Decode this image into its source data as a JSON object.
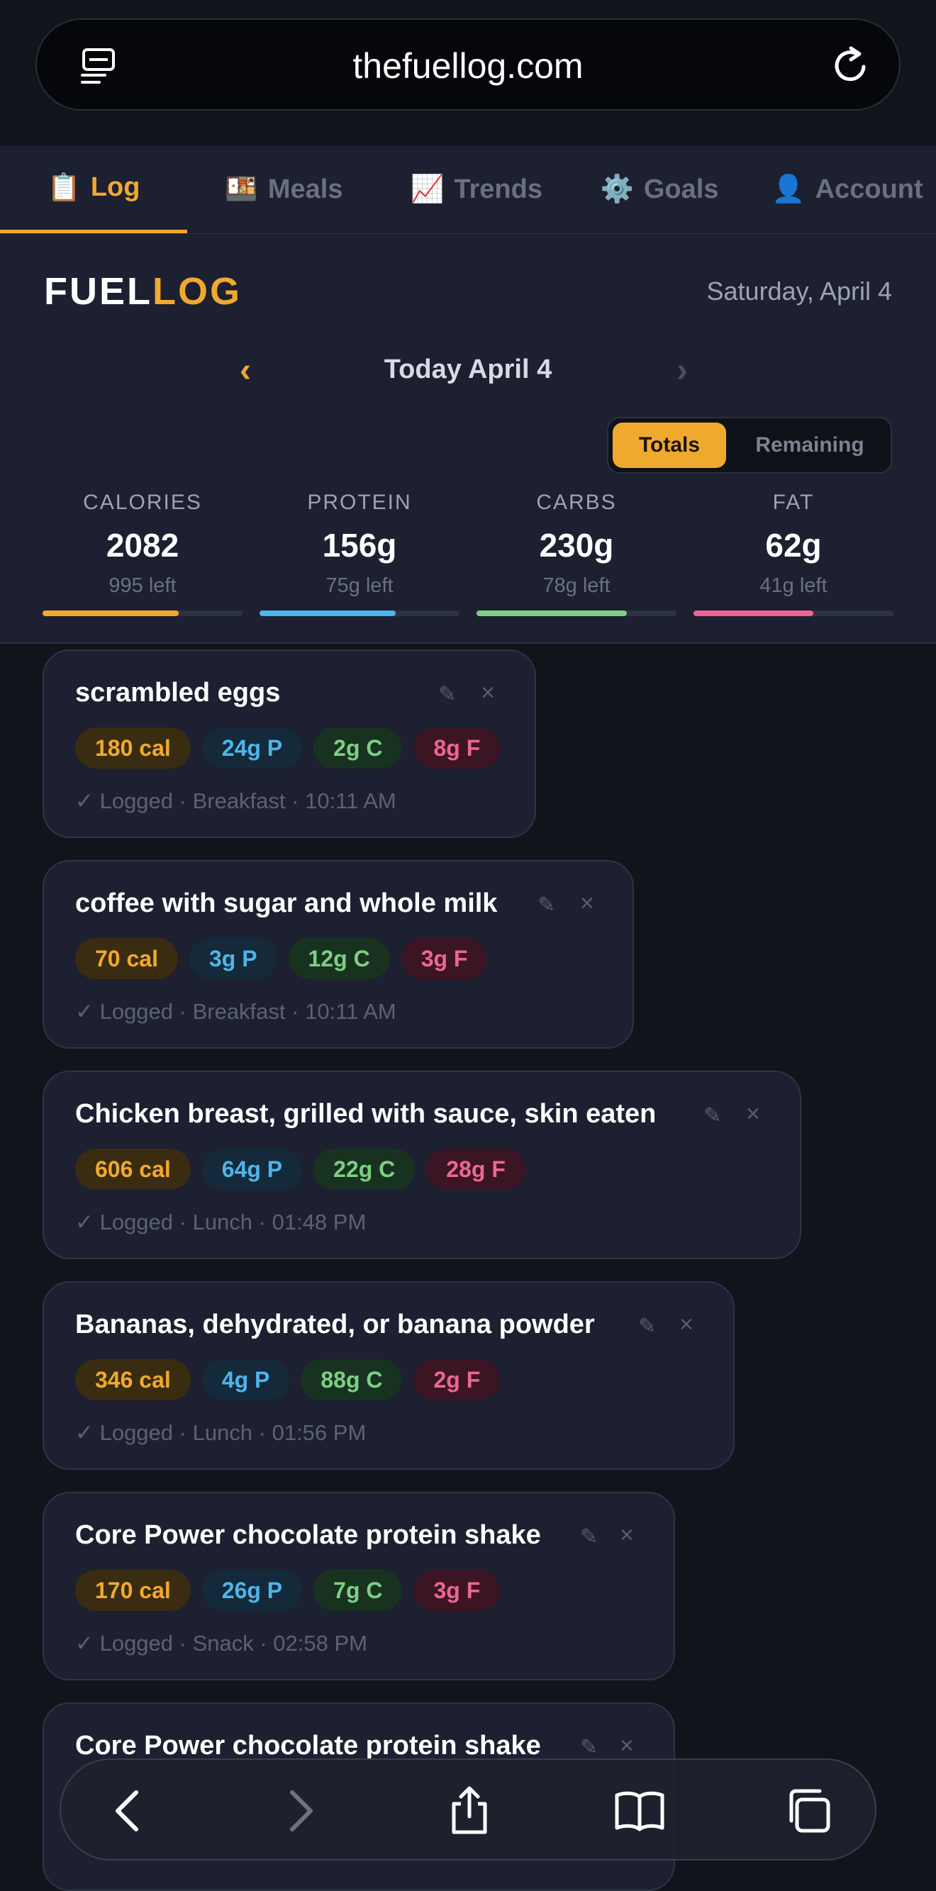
{
  "browser": {
    "url": "thefuellog.com"
  },
  "tabs": [
    {
      "emoji": "📋",
      "label": "Log",
      "active": true
    },
    {
      "emoji": "🍱",
      "label": "Meals",
      "active": false
    },
    {
      "emoji": "📈",
      "label": "Trends",
      "active": false
    },
    {
      "emoji": "⚙️",
      "label": "Goals",
      "active": false
    },
    {
      "emoji": "👤",
      "label": "Account",
      "active": false
    }
  ],
  "header": {
    "brand_part1": "FUEL",
    "brand_part2": "LOG",
    "date": "Saturday, April 4",
    "day_title": "Today April 4",
    "prev_arrow": "‹",
    "next_arrow": "›"
  },
  "toggle": {
    "totals": "Totals",
    "remaining": "Remaining",
    "selected": "Totals"
  },
  "stats": [
    {
      "label": "CALORIES",
      "value": "2082",
      "left": "995 left",
      "progress": 0.68,
      "color": "#f0a92f"
    },
    {
      "label": "PROTEIN",
      "value": "156g",
      "left": "75g left",
      "progress": 0.68,
      "color": "#4cb6ea"
    },
    {
      "label": "CARBS",
      "value": "230g",
      "left": "78g left",
      "progress": 0.75,
      "color": "#7ece84"
    },
    {
      "label": "FAT",
      "value": "62g",
      "left": "41g left",
      "progress": 0.6,
      "color": "#ee6595"
    }
  ],
  "entries": [
    {
      "name": "scrambled eggs",
      "cal": "180 cal",
      "p": "24g P",
      "c": "2g C",
      "f": "8g F",
      "meta": "✓ Logged · Breakfast · 10:11 AM"
    },
    {
      "name": "coffee with sugar and whole milk",
      "cal": "70 cal",
      "p": "3g P",
      "c": "12g C",
      "f": "3g F",
      "meta": "✓ Logged · Breakfast · 10:11 AM"
    },
    {
      "name": "Chicken breast, grilled with sauce, skin eaten",
      "cal": "606 cal",
      "p": "64g P",
      "c": "22g C",
      "f": "28g F",
      "meta": "✓ Logged · Lunch · 01:48 PM"
    },
    {
      "name": "Bananas, dehydrated, or banana powder",
      "cal": "346 cal",
      "p": "4g P",
      "c": "88g C",
      "f": "2g F",
      "meta": "✓ Logged · Lunch · 01:56 PM"
    },
    {
      "name": "Core Power chocolate protein shake",
      "cal": "170 cal",
      "p": "26g P",
      "c": "7g C",
      "f": "3g F",
      "meta": "✓ Logged · Snack · 02:58 PM"
    },
    {
      "name": "Core Power chocolate protein shake",
      "cal": "",
      "p": "",
      "c": "",
      "f": "",
      "meta": ""
    }
  ],
  "icons": {
    "edit": "✎",
    "close": "×"
  },
  "toolbar": [
    "back-icon",
    "forward-icon",
    "share-icon",
    "bookmarks-icon",
    "tabs-icon"
  ]
}
